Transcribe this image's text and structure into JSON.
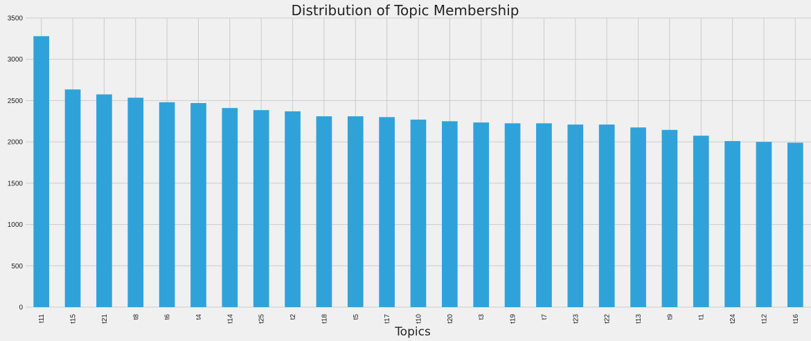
{
  "chart_data": {
    "type": "bar",
    "title": "Distribution of Topic Membership",
    "xlabel": "Topics",
    "ylabel": "",
    "ylim": [
      0,
      3500
    ],
    "yticks": [
      "0",
      "500",
      "1000",
      "1500",
      "2000",
      "2500",
      "3000",
      "3500"
    ],
    "grid": true,
    "legend": "none",
    "color": "#30a2da",
    "background": "#f0f0f0",
    "categories": [
      "t11",
      "t15",
      "t21",
      "t8",
      "t6",
      "t4",
      "t14",
      "t25",
      "t2",
      "t18",
      "t5",
      "t17",
      "t10",
      "t20",
      "t3",
      "t19",
      "t7",
      "t23",
      "t22",
      "t13",
      "t9",
      "t1",
      "t24",
      "t12",
      "t16"
    ],
    "values": [
      3280,
      2635,
      2575,
      2535,
      2480,
      2470,
      2410,
      2385,
      2370,
      2310,
      2310,
      2300,
      2270,
      2250,
      2235,
      2225,
      2225,
      2210,
      2210,
      2175,
      2145,
      2075,
      2010,
      2000,
      1990
    ]
  }
}
